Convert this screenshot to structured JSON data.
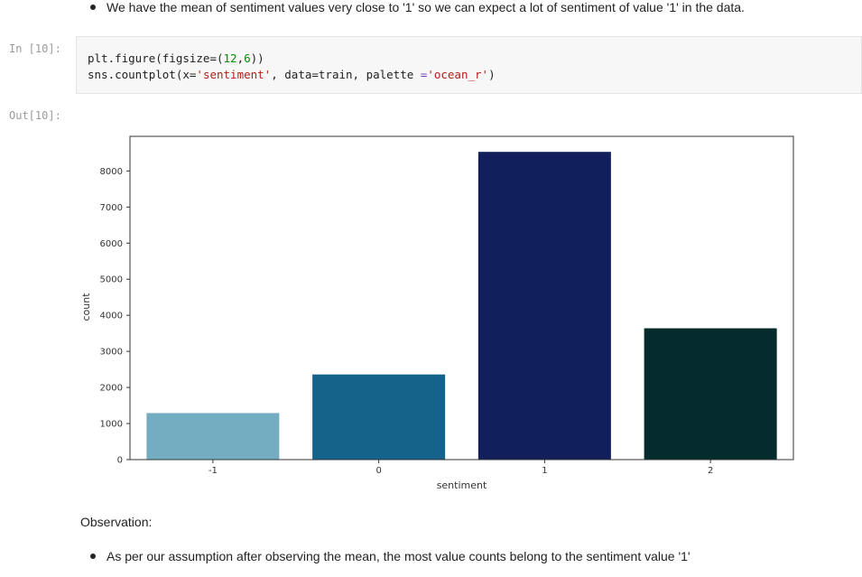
{
  "top_bullet": "We have the mean of sentiment values very close to '1' so we can expect a lot of sentiment of value '1' in the data.",
  "cell": {
    "in_prompt": "In [10]:",
    "out_prompt": "Out[10]:",
    "code": {
      "line1": {
        "a": "plt.figure(figsize=(",
        "n1": "12",
        "b": ",",
        "n2": "6",
        "c": "))"
      },
      "line2": {
        "a": "sns.countplot(x=",
        "s1": "'sentiment'",
        "b": ", data=train, palette ",
        "op": "=",
        "s2": "'ocean_r'",
        "c": ")"
      }
    }
  },
  "chart_data": {
    "type": "bar",
    "categories": [
      "-1",
      "0",
      "1",
      "2"
    ],
    "values": [
      1290,
      2360,
      8530,
      3640
    ],
    "colors": [
      "#74adc1",
      "#14638a",
      "#111f5b",
      "#062b2c"
    ],
    "xlabel": "sentiment",
    "ylabel": "count",
    "ylim": [
      0,
      8500
    ],
    "yticks": [
      0,
      1000,
      2000,
      3000,
      4000,
      5000,
      6000,
      7000,
      8000
    ],
    "grid": false
  },
  "observation": {
    "heading": "Observation:",
    "bullet": "As per our assumption after observing the mean, the most value counts belong to the sentiment value '1'"
  }
}
